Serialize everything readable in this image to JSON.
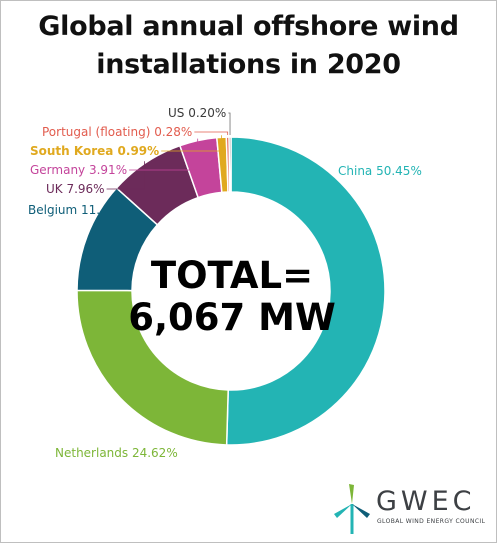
{
  "title_line1": "Global annual offshore wind",
  "title_line2": "installations in 2020",
  "center_line1": "TOTAL=",
  "center_line2": "6,067 MW",
  "logo": {
    "name": "GWEC",
    "subtitle": "GLOBAL WIND ENERGY COUNCIL"
  },
  "chart_data": {
    "type": "pie",
    "donut": true,
    "title": "Global annual offshore wind installations in 2020",
    "total_label": "TOTAL= 6,067 MW",
    "slices": [
      {
        "label": "China 50.45%",
        "value": 50.45,
        "color": "#23b4b4"
      },
      {
        "label": "Netherlands 24.62%",
        "value": 24.62,
        "color": "#7db638"
      },
      {
        "label": "Belgium 11.",
        "value": 11.59,
        "color": "#0f5e78"
      },
      {
        "label": "UK 7.96%",
        "value": 7.96,
        "color": "#6c2b5a"
      },
      {
        "label": "Germany 3.91%",
        "value": 3.91,
        "color": "#c4449b"
      },
      {
        "label": "South Korea 0.99%",
        "value": 0.99,
        "color": "#e0a91f"
      },
      {
        "label": "Portugal (floating) 0.28%",
        "value": 0.28,
        "color": "#e25c4e"
      },
      {
        "label": "US 0.20%",
        "value": 0.2,
        "color": "#6e6e6e"
      }
    ]
  }
}
